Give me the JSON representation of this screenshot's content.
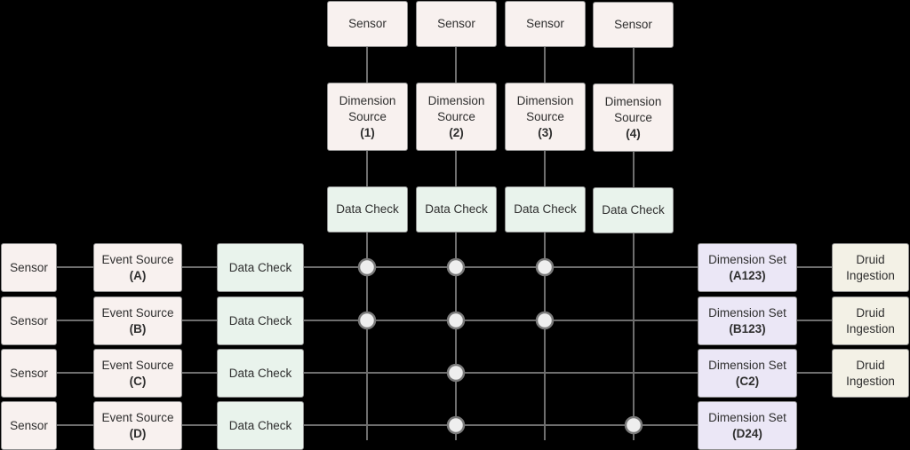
{
  "colors": {
    "background": "#000000",
    "wire": "#6e6e6e",
    "sensor_fill": "#f8f1ef",
    "check_fill": "#e9f3ec",
    "dimension_set_fill": "#ebe7f6",
    "druid_fill": "#f3f1e6",
    "junction_fill": "#eeeeee"
  },
  "top_columns": [
    {
      "sensor": "Sensor",
      "dim_source_line1": "Dimension",
      "dim_source_line2": "Source",
      "dim_source_id": "(1)",
      "check": "Data Check"
    },
    {
      "sensor": "Sensor",
      "dim_source_line1": "Dimension",
      "dim_source_line2": "Source",
      "dim_source_id": "(2)",
      "check": "Data Check"
    },
    {
      "sensor": "Sensor",
      "dim_source_line1": "Dimension",
      "dim_source_line2": "Source",
      "dim_source_id": "(3)",
      "check": "Data Check"
    },
    {
      "sensor": "Sensor",
      "dim_source_line1": "Dimension",
      "dim_source_line2": "Source",
      "dim_source_id": "(4)",
      "check": "Data Check"
    }
  ],
  "rows": [
    {
      "sensor": "Sensor",
      "event_source": "Event Source",
      "event_id": "(A)",
      "check": "Data Check",
      "dim_set": "Dimension Set",
      "dim_set_id": "(A123)",
      "druid_line1": "Druid",
      "druid_line2": "Ingestion"
    },
    {
      "sensor": "Sensor",
      "event_source": "Event Source",
      "event_id": "(B)",
      "check": "Data Check",
      "dim_set": "Dimension Set",
      "dim_set_id": "(B123)",
      "druid_line1": "Druid",
      "druid_line2": "Ingestion"
    },
    {
      "sensor": "Sensor",
      "event_source": "Event Source",
      "event_id": "(C)",
      "check": "Data Check",
      "dim_set": "Dimension Set",
      "dim_set_id": "(C2)",
      "druid_line1": "Druid",
      "druid_line2": "Ingestion"
    },
    {
      "sensor": "Sensor",
      "event_source": "Event Source",
      "event_id": "(D)",
      "check": "Data Check",
      "dim_set": "Dimension Set",
      "dim_set_id": "(D24)"
    }
  ],
  "joins": [
    {
      "event": "A",
      "dimensions": [
        1,
        2,
        3
      ]
    },
    {
      "event": "B",
      "dimensions": [
        1,
        2,
        3
      ]
    },
    {
      "event": "C",
      "dimensions": [
        2
      ]
    },
    {
      "event": "D",
      "dimensions": [
        2,
        4
      ]
    }
  ]
}
